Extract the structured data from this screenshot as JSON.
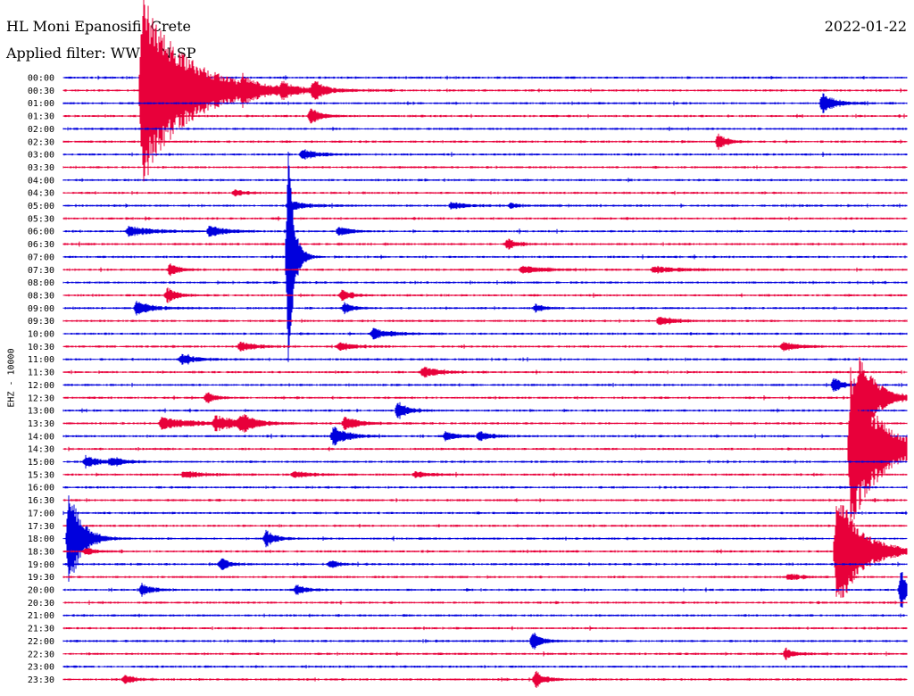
{
  "header": {
    "station": "HL Moni Epanosifi, Crete",
    "filter": "Applied filter: WWSSN-SP",
    "date": "2022-01-22"
  },
  "chart_data": {
    "type": "helicorder",
    "title": "HL Moni Epanosifi, Crete",
    "subtitle": "Applied filter: WWSSN-SP",
    "date": "2022-01-22",
    "ylabel": "EHZ - 10000",
    "row_labels": [
      "00:00",
      "00:30",
      "01:00",
      "01:30",
      "02:00",
      "02:30",
      "03:00",
      "03:30",
      "04:00",
      "04:30",
      "05:00",
      "05:30",
      "06:00",
      "06:30",
      "07:00",
      "07:30",
      "08:00",
      "08:30",
      "09:00",
      "09:30",
      "10:00",
      "10:30",
      "11:00",
      "11:30",
      "12:00",
      "12:30",
      "13:00",
      "13:30",
      "14:00",
      "14:30",
      "15:00",
      "15:30",
      "16:00",
      "16:30",
      "17:00",
      "17:30",
      "18:00",
      "18:30",
      "19:00",
      "19:30",
      "20:00",
      "20:30",
      "21:00",
      "21:30",
      "22:00",
      "22:30",
      "23:00",
      "23:30"
    ],
    "minutes_per_line": 30,
    "colors": [
      "#0000dd",
      "#e8003a"
    ],
    "events": [
      {
        "row": 1,
        "minute": 2.8,
        "amplitude": 14,
        "decay": 1.5
      },
      {
        "row": 1,
        "minute": 6.4,
        "amplitude": 1.3,
        "decay": 0.3
      },
      {
        "row": 1,
        "minute": 7.8,
        "amplitude": 0.9,
        "decay": 0.3
      },
      {
        "row": 1,
        "minute": 8.9,
        "amplitude": 1.5,
        "decay": 0.3
      },
      {
        "row": 2,
        "minute": 27.0,
        "amplitude": 1.6,
        "decay": 0.4
      },
      {
        "row": 3,
        "minute": 8.8,
        "amplitude": 1.3,
        "decay": 0.3
      },
      {
        "row": 5,
        "minute": 23.3,
        "amplitude": 1.2,
        "decay": 0.3
      },
      {
        "row": 6,
        "minute": 8.5,
        "amplitude": 0.7,
        "decay": 0.5
      },
      {
        "row": 9,
        "minute": 6.1,
        "amplitude": 0.5,
        "decay": 0.3
      },
      {
        "row": 10,
        "minute": 8.0,
        "amplitude": 0.7,
        "decay": 0.6
      },
      {
        "row": 10,
        "minute": 13.8,
        "amplitude": 0.5,
        "decay": 0.5
      },
      {
        "row": 10,
        "minute": 15.9,
        "amplitude": 0.4,
        "decay": 0.3
      },
      {
        "row": 12,
        "minute": 2.3,
        "amplitude": 0.7,
        "decay": 0.8
      },
      {
        "row": 12,
        "minute": 5.2,
        "amplitude": 0.8,
        "decay": 0.5
      },
      {
        "row": 12,
        "minute": 9.8,
        "amplitude": 0.6,
        "decay": 0.4
      },
      {
        "row": 13,
        "minute": 15.8,
        "amplitude": 0.8,
        "decay": 0.3
      },
      {
        "row": 14,
        "minute": 8.0,
        "amplitude": 16,
        "decay": 0.2
      },
      {
        "row": 15,
        "minute": 3.8,
        "amplitude": 0.9,
        "decay": 0.3
      },
      {
        "row": 15,
        "minute": 16.3,
        "amplitude": 0.5,
        "decay": 0.8
      },
      {
        "row": 15,
        "minute": 21.0,
        "amplitude": 0.5,
        "decay": 0.8
      },
      {
        "row": 17,
        "minute": 3.7,
        "amplitude": 1.1,
        "decay": 0.3
      },
      {
        "row": 17,
        "minute": 9.9,
        "amplitude": 0.9,
        "decay": 0.3
      },
      {
        "row": 18,
        "minute": 2.6,
        "amplitude": 1.0,
        "decay": 0.5
      },
      {
        "row": 18,
        "minute": 10.0,
        "amplitude": 0.8,
        "decay": 0.3
      },
      {
        "row": 18,
        "minute": 16.8,
        "amplitude": 0.6,
        "decay": 0.3
      },
      {
        "row": 19,
        "minute": 21.2,
        "amplitude": 0.7,
        "decay": 0.5
      },
      {
        "row": 20,
        "minute": 11.0,
        "amplitude": 0.8,
        "decay": 0.6
      },
      {
        "row": 21,
        "minute": 6.3,
        "amplitude": 0.7,
        "decay": 0.5
      },
      {
        "row": 21,
        "minute": 9.8,
        "amplitude": 0.6,
        "decay": 0.5
      },
      {
        "row": 21,
        "minute": 25.6,
        "amplitude": 0.7,
        "decay": 0.5
      },
      {
        "row": 22,
        "minute": 4.2,
        "amplitude": 0.7,
        "decay": 0.5
      },
      {
        "row": 23,
        "minute": 12.8,
        "amplitude": 0.8,
        "decay": 0.5
      },
      {
        "row": 24,
        "minute": 27.4,
        "amplitude": 1.0,
        "decay": 0.3
      },
      {
        "row": 25,
        "minute": 28.3,
        "amplitude": 6.3,
        "decay": 0.6
      },
      {
        "row": 25,
        "minute": 5.1,
        "amplitude": 0.8,
        "decay": 0.3
      },
      {
        "row": 26,
        "minute": 11.9,
        "amplitude": 1.4,
        "decay": 0.3
      },
      {
        "row": 27,
        "minute": 3.5,
        "amplitude": 0.8,
        "decay": 1.0
      },
      {
        "row": 27,
        "minute": 5.4,
        "amplitude": 1.0,
        "decay": 0.8
      },
      {
        "row": 27,
        "minute": 6.3,
        "amplitude": 1.3,
        "decay": 0.4
      },
      {
        "row": 27,
        "minute": 10.0,
        "amplitude": 1.0,
        "decay": 0.5
      },
      {
        "row": 28,
        "minute": 9.6,
        "amplitude": 1.3,
        "decay": 0.5
      },
      {
        "row": 28,
        "minute": 13.6,
        "amplitude": 0.7,
        "decay": 0.4
      },
      {
        "row": 28,
        "minute": 14.8,
        "amplitude": 0.7,
        "decay": 0.4
      },
      {
        "row": 29,
        "minute": 28.0,
        "amplitude": 12,
        "decay": 1.0
      },
      {
        "row": 30,
        "minute": 0.8,
        "amplitude": 0.9,
        "decay": 0.4
      },
      {
        "row": 30,
        "minute": 1.7,
        "amplitude": 0.7,
        "decay": 0.4
      },
      {
        "row": 31,
        "minute": 4.3,
        "amplitude": 0.5,
        "decay": 0.6
      },
      {
        "row": 31,
        "minute": 8.2,
        "amplitude": 0.5,
        "decay": 0.5
      },
      {
        "row": 31,
        "minute": 12.5,
        "amplitude": 0.4,
        "decay": 0.5
      },
      {
        "row": 36,
        "minute": 0.2,
        "amplitude": 8,
        "decay": 0.4
      },
      {
        "row": 36,
        "minute": 7.2,
        "amplitude": 1.2,
        "decay": 0.3
      },
      {
        "row": 37,
        "minute": 0.8,
        "amplitude": 0.6,
        "decay": 0.3
      },
      {
        "row": 37,
        "minute": 27.5,
        "amplitude": 9.5,
        "decay": 0.8
      },
      {
        "row": 38,
        "minute": 5.6,
        "amplitude": 0.9,
        "decay": 0.3
      },
      {
        "row": 38,
        "minute": 9.5,
        "amplitude": 0.6,
        "decay": 0.3
      },
      {
        "row": 39,
        "minute": 25.8,
        "amplitude": 0.5,
        "decay": 0.4
      },
      {
        "row": 40,
        "minute": 2.8,
        "amplitude": 0.9,
        "decay": 0.3
      },
      {
        "row": 40,
        "minute": 8.3,
        "amplitude": 0.7,
        "decay": 0.3
      },
      {
        "row": 40,
        "minute": 29.8,
        "amplitude": 3.0,
        "decay": 0.2
      },
      {
        "row": 44,
        "minute": 16.7,
        "amplitude": 1.3,
        "decay": 0.3
      },
      {
        "row": 45,
        "minute": 25.7,
        "amplitude": 0.8,
        "decay": 0.3
      },
      {
        "row": 47,
        "minute": 2.2,
        "amplitude": 0.7,
        "decay": 0.3
      },
      {
        "row": 47,
        "minute": 16.8,
        "amplitude": 1.2,
        "decay": 0.3
      }
    ]
  }
}
